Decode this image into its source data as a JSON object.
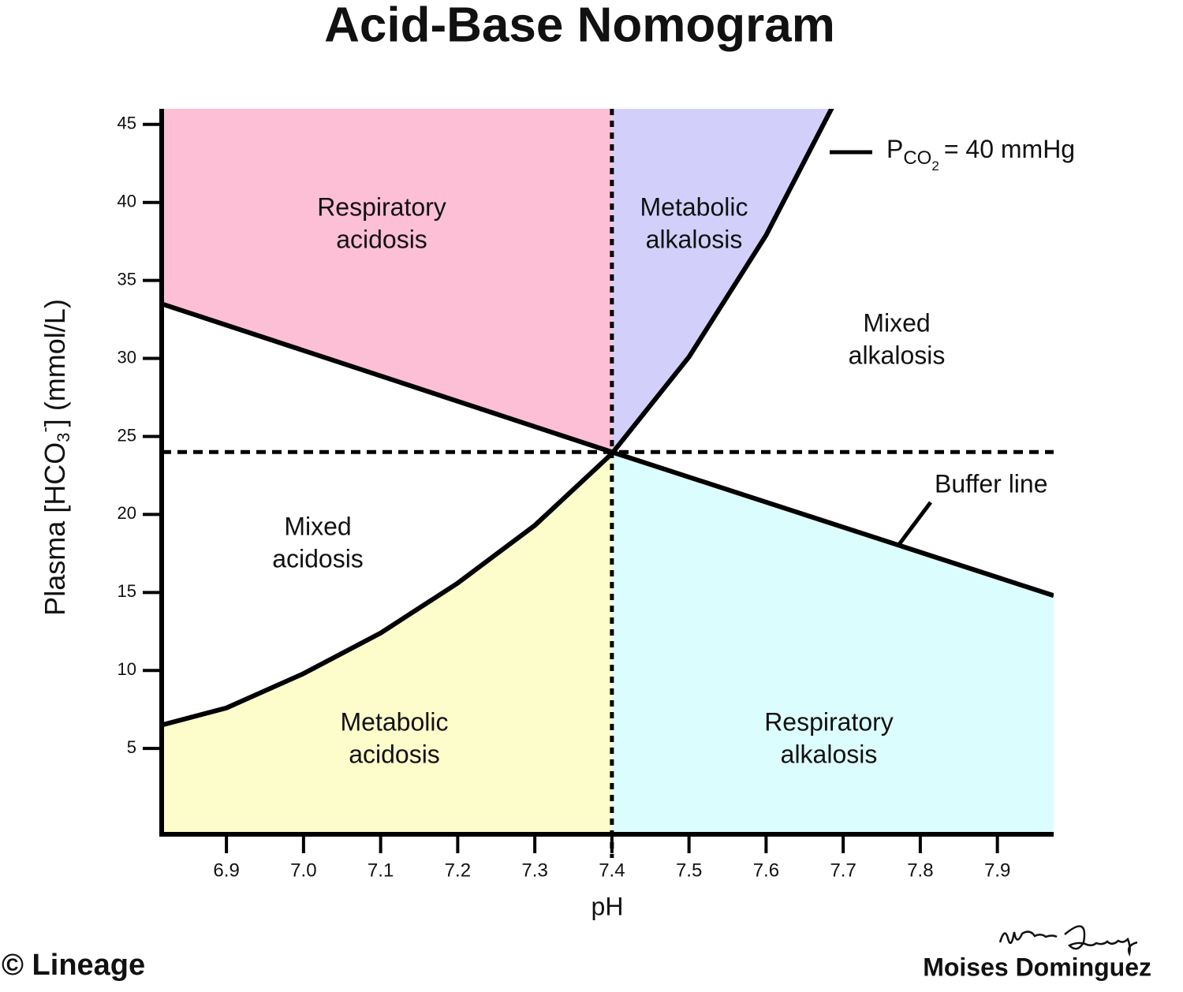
{
  "chart_data": {
    "type": "nomogram",
    "title": "Acid-Base Nomogram",
    "x_label": "pH",
    "y_label": [
      "Plasma [HCO",
      "3",
      "-",
      "] (mmol/L)"
    ],
    "xlim": [
      6.816,
      7.973
    ],
    "ylim": [
      -0.5,
      46
    ],
    "xticks": [
      6.9,
      {
        "value": 7,
        "label": "7.0"
      },
      7.1,
      7.2,
      7.3,
      7.4,
      7.5,
      7.6,
      7.7,
      7.8,
      7.9
    ],
    "yticks": [
      5,
      10,
      15,
      20,
      25,
      30,
      35,
      40,
      45
    ],
    "reference_x": 7.4,
    "reference_y": 24,
    "curves": [
      {
        "label": [
          "Buffer line"
        ],
        "color": "#000000",
        "x": [
          6.816,
          7.4,
          7.973
        ],
        "y": [
          33.5,
          24,
          14.8
        ]
      },
      {
        "label": [
          "P",
          "CO",
          "2",
          "= 40 mmHg"
        ],
        "color": "#000000",
        "x": [
          6.816,
          6.9,
          7.0,
          7.1,
          7.2,
          7.3,
          7.4,
          7.5,
          7.6,
          7.69
        ],
        "y": [
          6.5,
          7.6,
          9.8,
          12.4,
          15.6,
          19.3,
          23.9,
          30.1,
          37.9,
          46.5
        ]
      }
    ],
    "regions": [
      {
        "label": [
          "Respiratory",
          "acidosis"
        ],
        "color": "#fdbfd6",
        "side": "left",
        "curve": 0,
        "above": true
      },
      {
        "label": [
          "Metabolic",
          "alkalosis"
        ],
        "color": "#d2d0fb",
        "side": "right",
        "curve": 1,
        "above": true
      },
      {
        "label": [
          "Mixed",
          "alkalosis"
        ]
      },
      {
        "label": [
          "Mixed",
          "acidosis"
        ]
      },
      {
        "label": [
          "Metabolic",
          "acidosis"
        ],
        "color": "#fdfccb",
        "side": "left",
        "curve": 1,
        "above": false
      },
      {
        "label": [
          "Respiratory",
          "alkalosis"
        ],
        "color": "#dcfdfd",
        "side": "right",
        "curve": 0,
        "above": false
      }
    ],
    "credit": "© Lineage",
    "author": "Moises Dominguez"
  }
}
